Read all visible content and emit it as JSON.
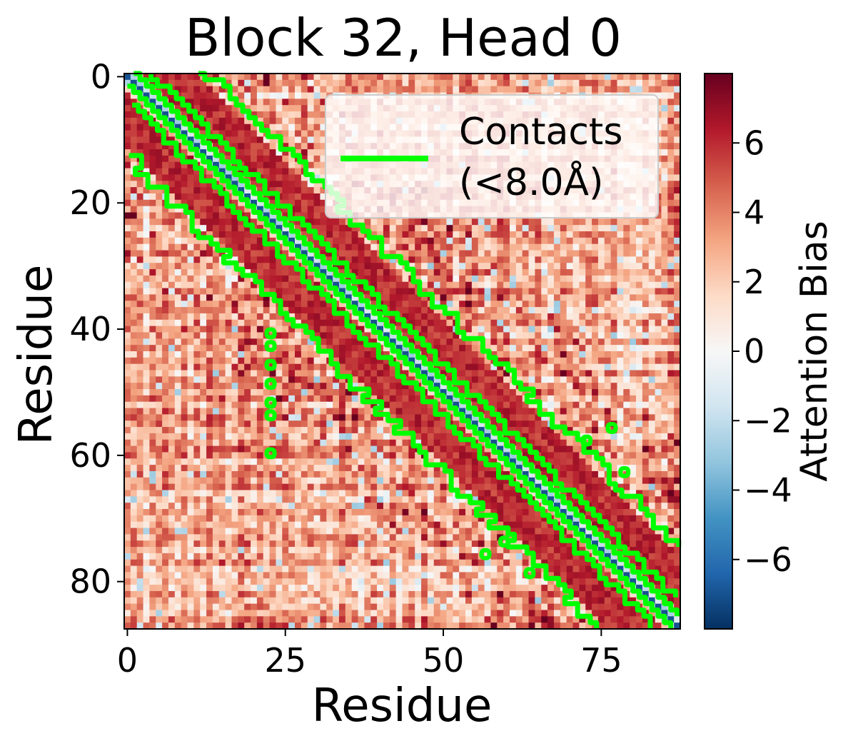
{
  "chart_data": {
    "type": "heatmap",
    "title": "Block 32, Head 0",
    "xlabel": "Residue",
    "ylabel": "Residue",
    "n": 88,
    "x_ticks": [
      0,
      25,
      50,
      75
    ],
    "y_ticks": [
      0,
      20,
      40,
      60,
      80
    ],
    "colormap": "RdBu_r",
    "colorbar": {
      "label": "Attention Bias",
      "range": [
        -8,
        8
      ],
      "ticks": [
        6,
        4,
        2,
        0,
        -2,
        -4,
        -6
      ],
      "tick_labels": [
        "6",
        "4",
        "2",
        "0",
        "−2",
        "−4",
        "−6"
      ]
    },
    "value_pattern": {
      "diagonal": -7,
      "near_diagonal_1": -3,
      "contact_band_offsets": [
        3,
        11
      ],
      "contact_band_value": 6,
      "background_range": [
        0,
        4
      ]
    },
    "contact_overlay": {
      "color": "#00ff00",
      "threshold": "8.0Å",
      "band_inner_offset": 1.5,
      "band_outer_offsets": [
        4,
        13
      ]
    },
    "legend": {
      "label_line1": "Contacts",
      "label_line2": "(<8.0Å)",
      "position": "upper-right"
    },
    "colors": {
      "diag_low": "#053061",
      "high": "#67001f",
      "mid": "#f7f7f7"
    }
  }
}
